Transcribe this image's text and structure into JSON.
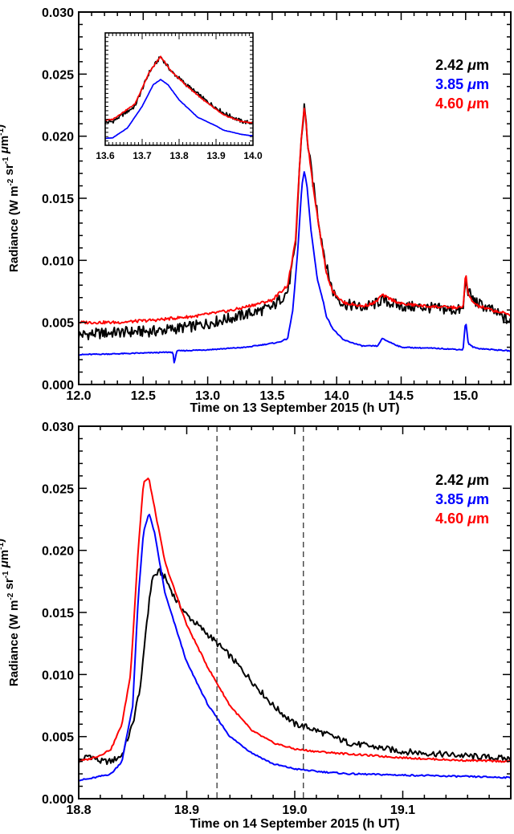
{
  "chart_data": [
    {
      "type": "line",
      "xlabel": "Time on 13 September 2015  (h UT)",
      "ylabel": "Radiance (W m",
      "ylabel_parts": [
        "Radiance (W m",
        "-2",
        " sr",
        "-1",
        " ",
        "μ",
        "m",
        "-1",
        ")"
      ],
      "xlim": [
        12.0,
        15.35
      ],
      "ylim": [
        0.0,
        0.03
      ],
      "xticks": [
        "12.0",
        "12.5",
        "13.0",
        "13.5",
        "14.0",
        "14.5",
        "15.0"
      ],
      "yticks": [
        "0.000",
        "0.005",
        "0.010",
        "0.015",
        "0.020",
        "0.025",
        "0.030"
      ],
      "legend_placement": "top-right",
      "series": [
        {
          "name": "2.42 μm",
          "color": "#000000",
          "noise": 0.00045,
          "x": [
            12.0,
            12.3,
            12.6,
            12.9,
            13.2,
            13.5,
            13.62,
            13.68,
            13.72,
            13.75,
            13.78,
            13.82,
            13.87,
            13.92,
            13.97,
            14.05,
            14.2,
            14.3,
            14.35,
            14.5,
            14.7,
            14.9,
            14.98,
            15.0,
            15.02,
            15.06,
            15.1,
            15.2,
            15.35
          ],
          "y": [
            0.004,
            0.0042,
            0.0043,
            0.0047,
            0.0054,
            0.0062,
            0.0075,
            0.011,
            0.019,
            0.0225,
            0.019,
            0.016,
            0.0125,
            0.0095,
            0.0075,
            0.0065,
            0.0062,
            0.0065,
            0.0068,
            0.0063,
            0.0062,
            0.006,
            0.006,
            0.0085,
            0.0075,
            0.0068,
            0.0065,
            0.006,
            0.005
          ]
        },
        {
          "name": "3.85 μm",
          "color": "#0000ff",
          "noise": 4e-05,
          "x": [
            12.0,
            12.4,
            12.7,
            12.73,
            12.74,
            12.76,
            13.0,
            13.3,
            13.55,
            13.62,
            13.66,
            13.7,
            13.73,
            13.75,
            13.77,
            13.8,
            13.85,
            13.9,
            13.92,
            13.97,
            14.05,
            14.2,
            14.32,
            14.35,
            14.5,
            14.8,
            14.98,
            15.0,
            15.02,
            15.06,
            15.1,
            15.35
          ],
          "y": [
            0.0024,
            0.0025,
            0.0026,
            0.0026,
            0.0017,
            0.0027,
            0.0028,
            0.003,
            0.0034,
            0.0037,
            0.006,
            0.011,
            0.016,
            0.0172,
            0.016,
            0.0125,
            0.0085,
            0.0065,
            0.0055,
            0.0045,
            0.0036,
            0.0031,
            0.0031,
            0.0037,
            0.003,
            0.0029,
            0.0028,
            0.0052,
            0.0033,
            0.003,
            0.0029,
            0.0027
          ]
        },
        {
          "name": "4.60 μm",
          "color": "#ff0000",
          "noise": 0.00012,
          "x": [
            12.0,
            12.3,
            12.6,
            12.9,
            13.2,
            13.5,
            13.62,
            13.68,
            13.72,
            13.75,
            13.78,
            13.82,
            13.87,
            13.92,
            13.97,
            14.05,
            14.2,
            14.3,
            14.35,
            14.5,
            14.7,
            14.9,
            14.98,
            15.0,
            15.02,
            15.06,
            15.1,
            15.2,
            15.35
          ],
          "y": [
            0.005,
            0.005,
            0.0052,
            0.0055,
            0.006,
            0.0068,
            0.008,
            0.0115,
            0.019,
            0.0225,
            0.019,
            0.0158,
            0.0122,
            0.009,
            0.0075,
            0.0066,
            0.0063,
            0.0066,
            0.0072,
            0.0065,
            0.0063,
            0.0062,
            0.0062,
            0.009,
            0.0072,
            0.0066,
            0.0063,
            0.006,
            0.0056
          ]
        }
      ],
      "inset": {
        "xlim": [
          13.6,
          14.0
        ],
        "xticks": [
          "13.6",
          "13.7",
          "13.8",
          "13.9",
          "14.0"
        ],
        "ylim": [
          0.0,
          0.03
        ]
      }
    },
    {
      "type": "line",
      "xlabel": "Time on 14 September 2015  (h UT)",
      "ylabel_parts": [
        "Radiance (W m",
        "-2",
        " sr",
        "-1",
        " ",
        "μ",
        "m",
        "-1",
        ")"
      ],
      "xlim": [
        18.8,
        19.2
      ],
      "ylim": [
        0.0,
        0.03
      ],
      "xticks": [
        "18.8",
        "18.9",
        "19.0",
        "19.1"
      ],
      "yticks": [
        "0.000",
        "0.005",
        "0.010",
        "0.015",
        "0.020",
        "0.025",
        "0.030"
      ],
      "vlines": [
        18.928,
        19.008
      ],
      "legend_placement": "top-right",
      "series": [
        {
          "name": "2.42 μm",
          "color": "#000000",
          "noise": 0.00025,
          "x": [
            18.8,
            18.81,
            18.82,
            18.83,
            18.84,
            18.85,
            18.858,
            18.862,
            18.868,
            18.875,
            18.88,
            18.89,
            18.9,
            18.92,
            18.94,
            18.96,
            18.98,
            19.0,
            19.01,
            19.02,
            19.05,
            19.1,
            19.15,
            19.2
          ],
          "y": [
            0.003,
            0.0035,
            0.003,
            0.003,
            0.0035,
            0.006,
            0.0095,
            0.0135,
            0.0178,
            0.0183,
            0.0178,
            0.016,
            0.0148,
            0.0132,
            0.0115,
            0.0095,
            0.0075,
            0.006,
            0.0058,
            0.0055,
            0.0045,
            0.0038,
            0.0035,
            0.0032
          ]
        },
        {
          "name": "3.85 μm",
          "color": "#0000ff",
          "noise": 6e-05,
          "x": [
            18.8,
            18.81,
            18.82,
            18.83,
            18.84,
            18.85,
            18.855,
            18.86,
            18.865,
            18.87,
            18.88,
            18.9,
            18.92,
            18.94,
            18.96,
            18.98,
            19.0,
            19.02,
            19.05,
            19.1,
            19.15,
            19.2
          ],
          "y": [
            0.0015,
            0.0016,
            0.0018,
            0.002,
            0.003,
            0.0075,
            0.016,
            0.0215,
            0.023,
            0.0215,
            0.0165,
            0.011,
            0.0075,
            0.005,
            0.0037,
            0.0028,
            0.0024,
            0.0022,
            0.002,
            0.0019,
            0.0018,
            0.0017
          ]
        },
        {
          "name": "4.60 μm",
          "color": "#ff0000",
          "noise": 7e-05,
          "x": [
            18.8,
            18.81,
            18.82,
            18.83,
            18.84,
            18.848,
            18.855,
            18.86,
            18.865,
            18.87,
            18.88,
            18.9,
            18.92,
            18.94,
            18.96,
            18.98,
            19.0,
            19.02,
            19.05,
            19.1,
            19.15,
            19.2
          ],
          "y": [
            0.003,
            0.0032,
            0.0035,
            0.004,
            0.006,
            0.01,
            0.02,
            0.0255,
            0.0258,
            0.0235,
            0.019,
            0.014,
            0.0105,
            0.0075,
            0.0055,
            0.0045,
            0.004,
            0.0038,
            0.0036,
            0.0033,
            0.0031,
            0.003
          ]
        }
      ]
    }
  ]
}
